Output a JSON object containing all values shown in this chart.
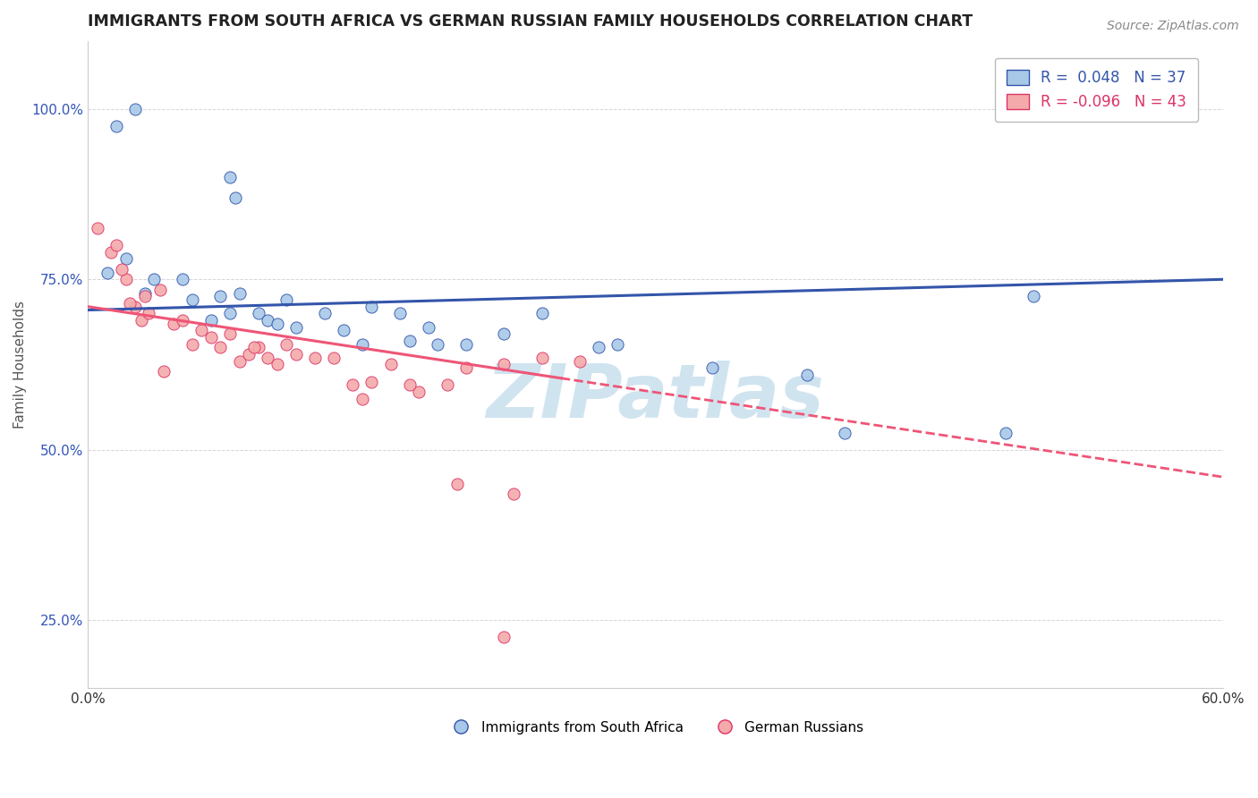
{
  "title": "IMMIGRANTS FROM SOUTH AFRICA VS GERMAN RUSSIAN FAMILY HOUSEHOLDS CORRELATION CHART",
  "source": "Source: ZipAtlas.com",
  "ylabel": "Family Households",
  "xlim": [
    0.0,
    60.0
  ],
  "ylim": [
    15.0,
    110.0
  ],
  "yticks": [
    25.0,
    50.0,
    75.0,
    100.0
  ],
  "ytick_labels": [
    "25.0%",
    "50.0%",
    "75.0%",
    "100.0%"
  ],
  "xticks": [
    0.0,
    15.0,
    30.0,
    45.0,
    60.0
  ],
  "xtick_labels": [
    "0.0%",
    "",
    "",
    "",
    "60.0%"
  ],
  "legend_blue_r": "0.048",
  "legend_blue_n": "37",
  "legend_pink_r": "-0.096",
  "legend_pink_n": "43",
  "blue_color": "#A8C8E8",
  "pink_color": "#F4AAAA",
  "trend_blue_color": "#3355AA",
  "trend_pink_solid_color": "#EE5577",
  "trend_pink_dash_color": "#EE5577",
  "watermark": "ZIPatlas",
  "watermark_color": "#D0E4F0",
  "blue_scatter_x": [
    1.5,
    2.5,
    7.5,
    7.8,
    1.0,
    2.0,
    3.5,
    5.0,
    5.5,
    7.0,
    7.5,
    8.0,
    9.0,
    9.5,
    10.5,
    11.0,
    12.5,
    13.5,
    15.0,
    16.5,
    18.0,
    18.5,
    24.0,
    17.0,
    20.0,
    27.0,
    33.0,
    38.0,
    3.0,
    6.5,
    48.5,
    28.0,
    40.0,
    10.0,
    14.5,
    22.0,
    50.0
  ],
  "blue_scatter_y": [
    97.5,
    100.0,
    90.0,
    87.0,
    76.0,
    78.0,
    75.0,
    75.0,
    72.0,
    72.5,
    70.0,
    73.0,
    70.0,
    69.0,
    72.0,
    68.0,
    70.0,
    67.5,
    71.0,
    70.0,
    68.0,
    65.5,
    70.0,
    66.0,
    65.5,
    65.0,
    62.0,
    61.0,
    73.0,
    69.0,
    52.5,
    65.5,
    52.5,
    68.5,
    65.5,
    67.0,
    72.5
  ],
  "pink_scatter_x": [
    0.5,
    1.2,
    1.5,
    2.0,
    2.5,
    2.8,
    3.2,
    3.8,
    4.5,
    5.0,
    5.5,
    6.0,
    6.5,
    7.0,
    7.5,
    8.0,
    8.5,
    9.0,
    9.5,
    10.0,
    11.0,
    12.0,
    13.0,
    14.0,
    15.0,
    16.0,
    17.5,
    19.0,
    20.0,
    22.0,
    24.0,
    26.0,
    4.0,
    2.2,
    3.0,
    1.8,
    8.8,
    10.5,
    14.5,
    17.0,
    19.5,
    22.5,
    22.0
  ],
  "pink_scatter_y": [
    82.5,
    79.0,
    80.0,
    75.0,
    71.0,
    69.0,
    70.0,
    73.5,
    68.5,
    69.0,
    65.5,
    67.5,
    66.5,
    65.0,
    67.0,
    63.0,
    64.0,
    65.0,
    63.5,
    62.5,
    64.0,
    63.5,
    63.5,
    59.5,
    60.0,
    62.5,
    58.5,
    59.5,
    62.0,
    62.5,
    63.5,
    63.0,
    61.5,
    71.5,
    72.5,
    76.5,
    65.0,
    65.5,
    57.5,
    59.5,
    45.0,
    43.5,
    22.5
  ],
  "trend_blue_x0": 0.0,
  "trend_blue_y0": 70.5,
  "trend_blue_x1": 60.0,
  "trend_blue_y1": 75.0,
  "trend_pink_solid_x0": 0.0,
  "trend_pink_solid_y0": 71.0,
  "trend_pink_solid_x1": 25.0,
  "trend_pink_solid_y1": 60.5,
  "trend_pink_dash_x0": 25.0,
  "trend_pink_dash_y0": 60.5,
  "trend_pink_dash_x1": 60.0,
  "trend_pink_dash_y1": 46.0
}
